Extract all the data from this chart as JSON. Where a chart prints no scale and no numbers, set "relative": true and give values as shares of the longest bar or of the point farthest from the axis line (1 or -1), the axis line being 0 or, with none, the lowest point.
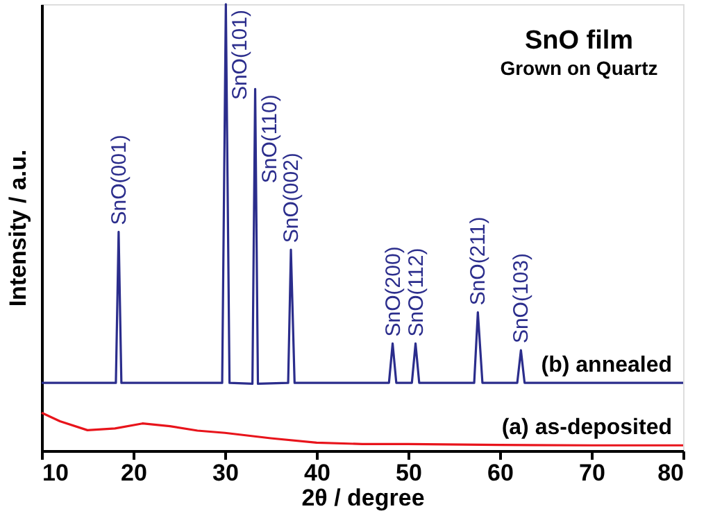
{
  "chart_data": {
    "type": "line",
    "title": "SnO film",
    "subtitle": "Grown on Quartz",
    "xlabel": "2θ / degree",
    "ylabel": "Intensity / a.u.",
    "relative": true,
    "xlim": [
      10,
      80
    ],
    "xticks": [
      10,
      20,
      30,
      40,
      50,
      60,
      70,
      80
    ],
    "tick_labels": "x",
    "grid": false,
    "legend": false,
    "series": [
      {
        "name": "(b) annealed",
        "color": "#2b2d8c",
        "line_style": "solid",
        "x": [
          10,
          18.1,
          18.4,
          18.7,
          29.7,
          30.1,
          30.5,
          33.0,
          33.3,
          33.6,
          36.9,
          37.2,
          37.6,
          47.9,
          48.3,
          48.7,
          50.4,
          50.8,
          51.2,
          57.2,
          57.6,
          58.1,
          61.9,
          62.3,
          62.7,
          80
        ],
        "values": [
          0.152,
          0.152,
          0.49,
          0.152,
          0.152,
          1.0,
          0.152,
          0.15,
          0.81,
          0.15,
          0.152,
          0.45,
          0.152,
          0.152,
          0.24,
          0.152,
          0.152,
          0.24,
          0.152,
          0.152,
          0.31,
          0.152,
          0.152,
          0.225,
          0.152,
          0.152
        ]
      },
      {
        "name": "(a) as-deposited",
        "color": "#e8141b",
        "line_style": "solid",
        "x": [
          10,
          12,
          15,
          18,
          21,
          24,
          27,
          30,
          35,
          40,
          45,
          50,
          60,
          70,
          80
        ],
        "values": [
          0.085,
          0.066,
          0.046,
          0.05,
          0.061,
          0.055,
          0.045,
          0.04,
          0.028,
          0.018,
          0.015,
          0.015,
          0.013,
          0.012,
          0.012
        ]
      }
    ],
    "annotations": [
      {
        "text": "SnO(001)",
        "x": 18.4,
        "y": 0.49
      },
      {
        "text": "SnO(101)",
        "x": 30.1,
        "y": 1.0
      },
      {
        "text": "SnO(110)",
        "x": 33.3,
        "y": 0.81
      },
      {
        "text": "SnO(002)",
        "x": 37.2,
        "y": 0.45
      },
      {
        "text": "SnO(200)",
        "x": 48.3,
        "y": 0.24
      },
      {
        "text": "SnO(112)",
        "x": 50.8,
        "y": 0.24
      },
      {
        "text": "SnO(211)",
        "x": 57.6,
        "y": 0.31
      },
      {
        "text": "SnO(103)",
        "x": 62.3,
        "y": 0.225
      }
    ]
  }
}
